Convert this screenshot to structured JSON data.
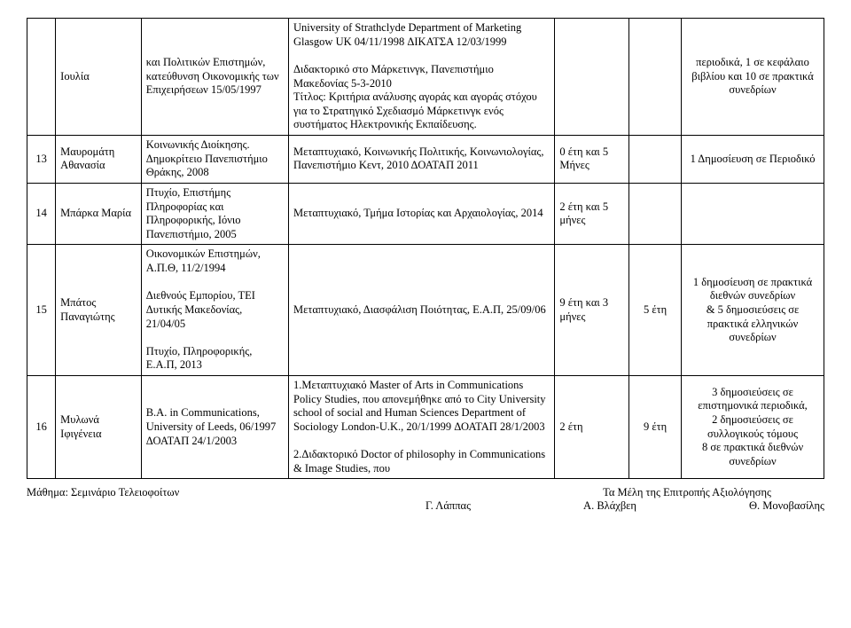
{
  "rows": [
    {
      "num": "",
      "name": "Ιουλία",
      "edu": "και Πολιτικών Επιστημών, κατεύθυνση Οικονομικής των Επιχειρήσεων 15/05/1997",
      "desc": "University of Strathclyde  Department of Marketing Glasgow UK 04/11/1998 ΔΙΚΑΤΣΑ 12/03/1999\n\nΔιδακτορικό στο Μάρκετινγκ, Πανεπιστήμιο Μακεδονίας 5-3-2010\nΤίτλος: Κριτήρια ανάλυσης αγοράς και αγοράς στόχου για το Στρατηγικό Σχεδιασμό Μάρκετινγκ ενός συστήματος Ηλεκτρονικής Εκπαίδευσης.",
      "dur1": "",
      "dur2": "",
      "pub": "περιοδικά, 1 σε κεφάλαιο βιβλίου και 10 σε πρακτικά συνεδρίων"
    },
    {
      "num": "13",
      "name": "Μαυρομάτη Αθανασία",
      "edu": "Κοινωνικής Διοίκησης. Δημοκρίτειο Πανεπιστήμιο Θράκης, 2008",
      "desc": "Μεταπτυχιακό, Κοινωνικής Πολιτικής, Κοινωνιολογίας, Πανεπιστήμιο Κεντ, 2010 ΔΟΑΤΑΠ 2011",
      "dur1": "0 έτη και 5 Μήνες",
      "dur2": "",
      "pub": "1 Δημοσίευση σε Περιοδικό"
    },
    {
      "num": "14",
      "name": "Μπάρκα Μαρία",
      "edu": "Πτυχίο, Επιστήμης Πληροφορίας και Πληροφορικής, Ιόνιο Πανεπιστήμιο, 2005",
      "desc": "Μεταπτυχιακό, Τμήμα Ιστορίας και Αρχαιολογίας, 2014",
      "dur1": "2  έτη και 5 μήνες",
      "dur2": "",
      "pub": ""
    },
    {
      "num": "15",
      "name": "Μπάτος Παναγιώτης",
      "edu": "Οικονομικών Επιστημών, Α.Π.Θ, 11/2/1994\n\nΔιεθνούς Εμπορίου, ΤΕΙ Δυτικής Μακεδονίας, 21/04/05\n\nΠτυχίο, Πληροφορικής, Ε.Α.Π, 2013",
      "desc": "Μεταπτυχιακό, Διασφάλιση Ποιότητας, Ε.Α.Π, 25/09/06",
      "dur1": "9 έτη και 3 μήνες",
      "dur2": "5 έτη",
      "pub": "1 δημοσίευση σε πρακτικά διεθνών συνεδρίων\n& 5 δημοσιεύσεις σε πρακτικά ελληνικών συνεδρίων"
    },
    {
      "num": "16",
      "name": "Μυλωνά Ιφιγένεια",
      "edu": "B.A. in Communications, University of Leeds, 06/1997\nΔΟΑΤΑΠ 24/1/2003",
      "desc": "1.Μεταπτυχιακό Master of Arts  in Communications Policy Studies, που απονεμήθηκε από το  City University school of social and Human Sciences Department of Sociology London-U.K., 20/1/1999 ΔΟΑΤΑΠ 28/1/2003\n\n2.Διδακτορικό  Doctor of philosophy in Communications & Image Studies,  που",
      "dur1": "2 έτη",
      "dur2": "9 έτη",
      "pub": "3 δημοσιεύσεις σε επιστημονικά περιοδικά,\n2 δημοσιεύσεις σε συλλογικούς τόμους\n8 σε πρακτικά διεθνών συνεδρίων"
    }
  ],
  "footer": {
    "left_top": "Μάθημα: Σεμινάριο Τελειοφοίτων",
    "left_bottom": "",
    "center_top": "Τα Μέλη της Επιτροπής Αξιολόγησης",
    "center_left": "Γ. Λάππας",
    "center_mid": "Α. Βλάχβεη",
    "center_right": "Θ. Μονοβασίλης"
  }
}
